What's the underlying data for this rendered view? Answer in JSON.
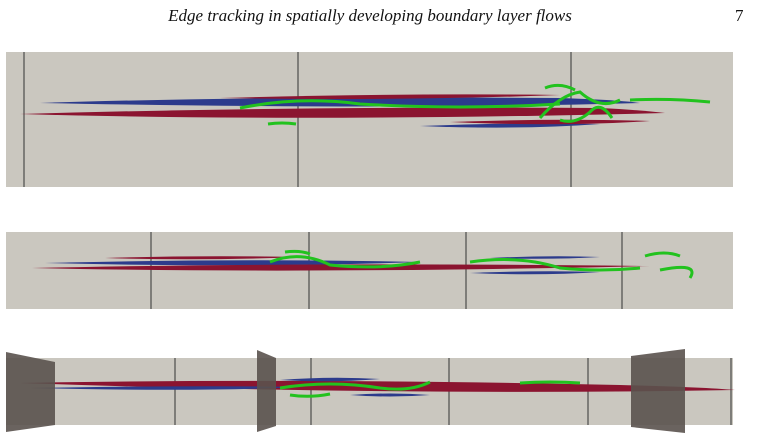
{
  "header": {
    "title": "Edge tracking in spatially developing boundary layer flows",
    "page_number": "7"
  }
}
